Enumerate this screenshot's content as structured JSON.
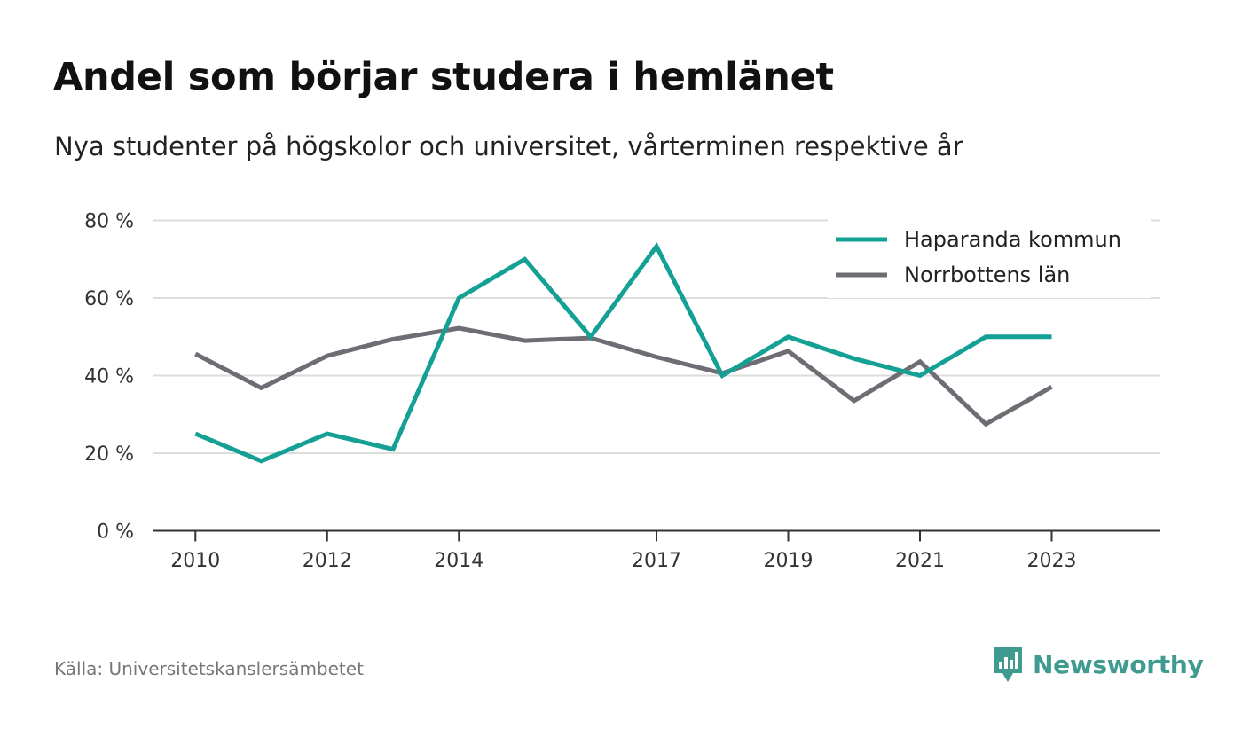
{
  "title": "Andel som börjar studera i hemlänet",
  "subtitle": "Nya studenter på högskolor och universitet, vårterminen respektive år",
  "source": "Källa: Universitetskanslersämbetet",
  "brand": {
    "name": "Newsworthy",
    "icon": "newsworthy-logo-icon",
    "color": "#3f9a90"
  },
  "chart_data": {
    "type": "line",
    "title": "Andel som börjar studera i hemlänet",
    "subtitle": "Nya studenter på högskolor och universitet, vårterminen respektive år",
    "x": [
      2010,
      2011,
      2012,
      2013,
      2014,
      2015,
      2016,
      2017,
      2018,
      2019,
      2020,
      2021,
      2022,
      2023
    ],
    "x_tick_values": [
      2010,
      2012,
      2014,
      2017,
      2019,
      2021,
      2023
    ],
    "x_tick_labels": [
      "2010",
      "2012",
      "2014",
      "2017",
      "2019",
      "2021",
      "2023"
    ],
    "y_tick_values": [
      0,
      20,
      40,
      60,
      80
    ],
    "y_tick_labels": [
      "0 %",
      "20 %",
      "40 %",
      "60 %",
      "80 %"
    ],
    "ylim": [
      0,
      80
    ],
    "xlim": [
      2009.35,
      2024.65
    ],
    "grid": true,
    "legend_position": "top-right",
    "series": [
      {
        "name": "Haparanda kommun",
        "color": "#14a095",
        "values": [
          25,
          18,
          25,
          21,
          60,
          70,
          50,
          73.3,
          40,
          50,
          44.4,
          40,
          50,
          50
        ]
      },
      {
        "name": "Norrbottens län",
        "color": "#6e6d74",
        "values": [
          45.6,
          36.8,
          45.1,
          49.4,
          52.2,
          49,
          49.7,
          44.8,
          40.6,
          46.3,
          33.5,
          43.6,
          27.5,
          37.1
        ]
      }
    ]
  }
}
